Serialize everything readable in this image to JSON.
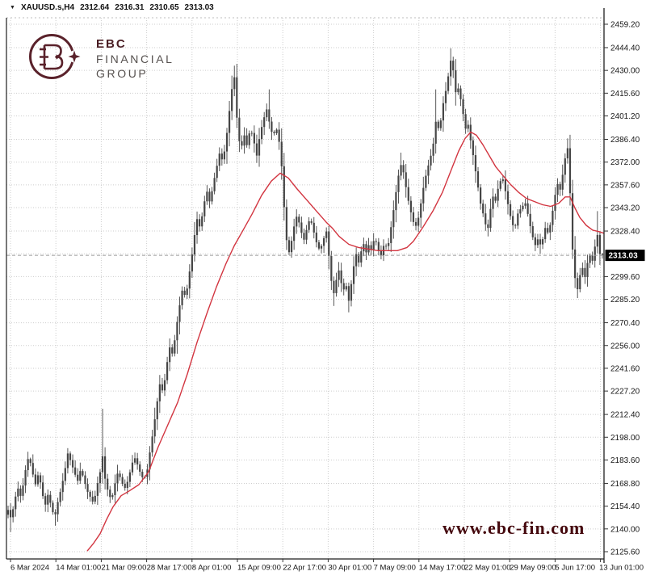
{
  "window": {
    "title_bar": {
      "collapse_icon": "▼",
      "symbol_timeframe": "XAUUSD.s,H4",
      "open": "2312.64",
      "high": "2316.31",
      "low": "2310.65",
      "close": "2313.03"
    }
  },
  "branding": {
    "logo_line1": "EBC",
    "logo_line2": "FINANCIAL",
    "logo_line3": "GROUP",
    "logo_color": "#5a222b",
    "logo_text_color": "#55504e",
    "watermark_text": "www.ebc-fin.com",
    "watermark_color": "#45090e"
  },
  "chart_data": {
    "type": "candlestick",
    "symbol": "XAUUSD.s",
    "timeframe": "H4",
    "title": "XAUUSD.s,H4 2312.64 2316.31 2310.65 2313.03",
    "current_bar": {
      "open": 2312.64,
      "high": 2316.31,
      "low": 2310.65,
      "close": 2313.03
    },
    "current_price": 2313.03,
    "current_price_label": "2313.03",
    "ylim": [
      2125.6,
      2459.2
    ],
    "grid": true,
    "legend_position": "none",
    "y_axis_labels": [
      "2459.20",
      "2444.40",
      "2430.00",
      "2415.60",
      "2401.20",
      "2386.40",
      "2372.00",
      "2357.60",
      "2343.20",
      "2328.40",
      "2299.60",
      "2285.20",
      "2270.40",
      "2256.00",
      "2241.60",
      "2227.20",
      "2212.40",
      "2198.00",
      "2183.60",
      "2168.80",
      "2154.40",
      "2140.00",
      "2125.60"
    ],
    "y_grid_extra": [
      2314.0
    ],
    "x_axis_labels": [
      "6 Mar 2024",
      "14 Mar 01:00",
      "21 Mar 09:00",
      "28 Mar 17:00",
      "8 Apr 01:00",
      "15 Apr 09:00",
      "22 Apr 17:00",
      "30 Apr 01:00",
      "7 May 09:00",
      "14 May 17:00",
      "22 May 01:00",
      "29 May 09:00",
      "5 Jun 17:00",
      "13 Jun 01:00"
    ],
    "colors": {
      "candle": "#454545",
      "ma_line": "#d23540",
      "grid": "#cdcdcd",
      "axis_text": "#161616",
      "price_box_bg": "#000000",
      "price_box_text": "#ffffff"
    },
    "candle_count": 240,
    "series": [
      {
        "name": "close_path",
        "points": [
          [
            10,
            2152
          ],
          [
            14,
            2146
          ],
          [
            18,
            2158
          ],
          [
            22,
            2166
          ],
          [
            26,
            2160
          ],
          [
            30,
            2172
          ],
          [
            33,
            2182
          ],
          [
            36,
            2186
          ],
          [
            40,
            2176
          ],
          [
            44,
            2168
          ],
          [
            48,
            2176
          ],
          [
            52,
            2163
          ],
          [
            56,
            2155
          ],
          [
            60,
            2163
          ],
          [
            64,
            2152
          ],
          [
            68,
            2148
          ],
          [
            72,
            2158
          ],
          [
            76,
            2166
          ],
          [
            80,
            2176
          ],
          [
            84,
            2188
          ],
          [
            88,
            2182
          ],
          [
            92,
            2176
          ],
          [
            96,
            2170
          ],
          [
            100,
            2178
          ],
          [
            104,
            2171
          ],
          [
            108,
            2164
          ],
          [
            112,
            2160
          ],
          [
            116,
            2156
          ],
          [
            120,
            2167
          ],
          [
            124,
            2176
          ],
          [
            127,
            2186
          ],
          [
            130,
            2172
          ],
          [
            134,
            2163
          ],
          [
            138,
            2158
          ],
          [
            142,
            2168
          ],
          [
            146,
            2176
          ],
          [
            150,
            2171
          ],
          [
            154,
            2165
          ],
          [
            158,
            2170
          ],
          [
            162,
            2178
          ],
          [
            166,
            2186
          ],
          [
            170,
            2181
          ],
          [
            174,
            2175
          ],
          [
            178,
            2171
          ],
          [
            182,
            2176
          ],
          [
            186,
            2190
          ],
          [
            190,
            2203
          ],
          [
            194,
            2218
          ],
          [
            198,
            2232
          ],
          [
            202,
            2226
          ],
          [
            206,
            2242
          ],
          [
            210,
            2255
          ],
          [
            214,
            2250
          ],
          [
            218,
            2266
          ],
          [
            222,
            2280
          ],
          [
            226,
            2292
          ],
          [
            230,
            2286
          ],
          [
            234,
            2300
          ],
          [
            238,
            2314
          ],
          [
            241,
            2326
          ],
          [
            244,
            2336
          ],
          [
            248,
            2330
          ],
          [
            252,
            2344
          ],
          [
            256,
            2354
          ],
          [
            260,
            2346
          ],
          [
            264,
            2358
          ],
          [
            268,
            2368
          ],
          [
            272,
            2378
          ],
          [
            276,
            2372
          ],
          [
            280,
            2386
          ],
          [
            284,
            2404
          ],
          [
            288,
            2422
          ],
          [
            290,
            2428
          ],
          [
            292,
            2408
          ],
          [
            294,
            2396
          ],
          [
            298,
            2378
          ],
          [
            302,
            2390
          ],
          [
            306,
            2382
          ],
          [
            310,
            2394
          ],
          [
            314,
            2386
          ],
          [
            318,
            2376
          ],
          [
            322,
            2390
          ],
          [
            326,
            2398
          ],
          [
            330,
            2406
          ],
          [
            334,
            2396
          ],
          [
            338,
            2388
          ],
          [
            342,
            2394
          ],
          [
            346,
            2384
          ],
          [
            349,
            2368
          ],
          [
            352,
            2342
          ],
          [
            355,
            2322
          ],
          [
            358,
            2315
          ],
          [
            361,
            2322
          ],
          [
            364,
            2331
          ],
          [
            368,
            2339
          ],
          [
            372,
            2330
          ],
          [
            376,
            2322
          ],
          [
            380,
            2330
          ],
          [
            384,
            2337
          ],
          [
            388,
            2329
          ],
          [
            392,
            2321
          ],
          [
            396,
            2316
          ],
          [
            400,
            2322
          ],
          [
            404,
            2329
          ],
          [
            407,
            2314
          ],
          [
            410,
            2298
          ],
          [
            413,
            2288
          ],
          [
            416,
            2296
          ],
          [
            419,
            2305
          ],
          [
            422,
            2297
          ],
          [
            425,
            2290
          ],
          [
            428,
            2296
          ],
          [
            432,
            2284
          ],
          [
            435,
            2295
          ],
          [
            438,
            2306
          ],
          [
            441,
            2314
          ],
          [
            444,
            2308
          ],
          [
            447,
            2315
          ],
          [
            450,
            2321
          ],
          [
            453,
            2314
          ],
          [
            456,
            2320
          ],
          [
            460,
            2316
          ],
          [
            464,
            2325
          ],
          [
            468,
            2317
          ],
          [
            472,
            2313
          ],
          [
            476,
            2321
          ],
          [
            480,
            2317
          ],
          [
            484,
            2330
          ],
          [
            488,
            2344
          ],
          [
            492,
            2359
          ],
          [
            496,
            2371
          ],
          [
            500,
            2365
          ],
          [
            504,
            2352
          ],
          [
            508,
            2342
          ],
          [
            512,
            2334
          ],
          [
            516,
            2331
          ],
          [
            520,
            2342
          ],
          [
            524,
            2355
          ],
          [
            528,
            2365
          ],
          [
            532,
            2373
          ],
          [
            536,
            2381
          ],
          [
            540,
            2399
          ],
          [
            544,
            2391
          ],
          [
            548,
            2407
          ],
          [
            552,
            2417
          ],
          [
            556,
            2429
          ],
          [
            559,
            2439
          ],
          [
            562,
            2427
          ],
          [
            565,
            2413
          ],
          [
            568,
            2420
          ],
          [
            571,
            2410
          ],
          [
            574,
            2401
          ],
          [
            577,
            2392
          ],
          [
            580,
            2396
          ],
          [
            583,
            2385
          ],
          [
            586,
            2376
          ],
          [
            589,
            2366
          ],
          [
            592,
            2356
          ],
          [
            595,
            2346
          ],
          [
            598,
            2340
          ],
          [
            601,
            2333
          ],
          [
            604,
            2329
          ],
          [
            607,
            2341
          ],
          [
            610,
            2351
          ],
          [
            613,
            2346
          ],
          [
            616,
            2354
          ],
          [
            619,
            2359
          ],
          [
            622,
            2363
          ],
          [
            625,
            2356
          ],
          [
            628,
            2348
          ],
          [
            631,
            2340
          ],
          [
            634,
            2334
          ],
          [
            637,
            2329
          ],
          [
            640,
            2336
          ],
          [
            643,
            2344
          ],
          [
            646,
            2340
          ],
          [
            649,
            2349
          ],
          [
            652,
            2343
          ],
          [
            655,
            2336
          ],
          [
            658,
            2328
          ],
          [
            661,
            2322
          ],
          [
            664,
            2318
          ],
          [
            667,
            2326
          ],
          [
            670,
            2317
          ],
          [
            673,
            2326
          ],
          [
            676,
            2332
          ],
          [
            679,
            2326
          ],
          [
            682,
            2334
          ],
          [
            685,
            2343
          ],
          [
            688,
            2353
          ],
          [
            691,
            2359
          ],
          [
            694,
            2354
          ],
          [
            697,
            2365
          ],
          [
            700,
            2375
          ],
          [
            703,
            2381
          ],
          [
            706,
            2352
          ],
          [
            709,
            2317
          ],
          [
            712,
            2299
          ],
          [
            715,
            2291
          ],
          [
            718,
            2300
          ],
          [
            721,
            2306
          ],
          [
            724,
            2298
          ],
          [
            727,
            2307
          ],
          [
            730,
            2314
          ],
          [
            733,
            2308
          ],
          [
            736,
            2315
          ],
          [
            739,
            2329
          ],
          [
            742,
            2318
          ],
          [
            744,
            2309
          ],
          [
            746,
            2313.03
          ]
        ]
      },
      {
        "name": "ma_line",
        "points": [
          [
            108,
            2126
          ],
          [
            116,
            2131
          ],
          [
            124,
            2137
          ],
          [
            132,
            2146
          ],
          [
            140,
            2154
          ],
          [
            150,
            2161
          ],
          [
            160,
            2164
          ],
          [
            172,
            2168
          ],
          [
            184,
            2176
          ],
          [
            196,
            2192
          ],
          [
            208,
            2206
          ],
          [
            220,
            2220
          ],
          [
            232,
            2238
          ],
          [
            244,
            2258
          ],
          [
            256,
            2276
          ],
          [
            268,
            2293
          ],
          [
            280,
            2308
          ],
          [
            290,
            2319
          ],
          [
            300,
            2328
          ],
          [
            312,
            2339
          ],
          [
            324,
            2351
          ],
          [
            336,
            2360
          ],
          [
            347,
            2365
          ],
          [
            357,
            2362
          ],
          [
            368,
            2355
          ],
          [
            380,
            2348
          ],
          [
            392,
            2341
          ],
          [
            404,
            2334
          ],
          [
            412,
            2330
          ],
          [
            420,
            2325
          ],
          [
            432,
            2320
          ],
          [
            444,
            2318
          ],
          [
            456,
            2317
          ],
          [
            468,
            2316
          ],
          [
            480,
            2316
          ],
          [
            492,
            2316
          ],
          [
            504,
            2318
          ],
          [
            512,
            2322
          ],
          [
            524,
            2331
          ],
          [
            536,
            2341
          ],
          [
            548,
            2353
          ],
          [
            558,
            2366
          ],
          [
            568,
            2379
          ],
          [
            576,
            2387
          ],
          [
            583,
            2391
          ],
          [
            590,
            2389
          ],
          [
            598,
            2383
          ],
          [
            606,
            2376
          ],
          [
            614,
            2369
          ],
          [
            622,
            2364
          ],
          [
            632,
            2358
          ],
          [
            642,
            2353
          ],
          [
            652,
            2349
          ],
          [
            662,
            2347
          ],
          [
            672,
            2345
          ],
          [
            682,
            2344
          ],
          [
            692,
            2346
          ],
          [
            700,
            2350
          ],
          [
            706,
            2350
          ],
          [
            712,
            2343
          ],
          [
            718,
            2337
          ],
          [
            726,
            2332
          ],
          [
            734,
            2329
          ],
          [
            742,
            2328
          ],
          [
            748,
            2327
          ]
        ]
      }
    ],
    "wick_extremes": {
      "highs": [
        [
          126,
          2216
        ],
        [
          290,
          2433
        ],
        [
          333,
          2418
        ],
        [
          496,
          2378
        ],
        [
          540,
          2418
        ],
        [
          558,
          2444
        ],
        [
          703,
          2387
        ],
        [
          739,
          2341
        ]
      ],
      "lows": [
        [
          13,
          2138
        ],
        [
          67,
          2142
        ],
        [
          413,
          2281
        ],
        [
          432,
          2277
        ],
        [
          516,
          2329
        ],
        [
          604,
          2325
        ],
        [
          670,
          2314
        ],
        [
          715,
          2286
        ]
      ]
    }
  }
}
